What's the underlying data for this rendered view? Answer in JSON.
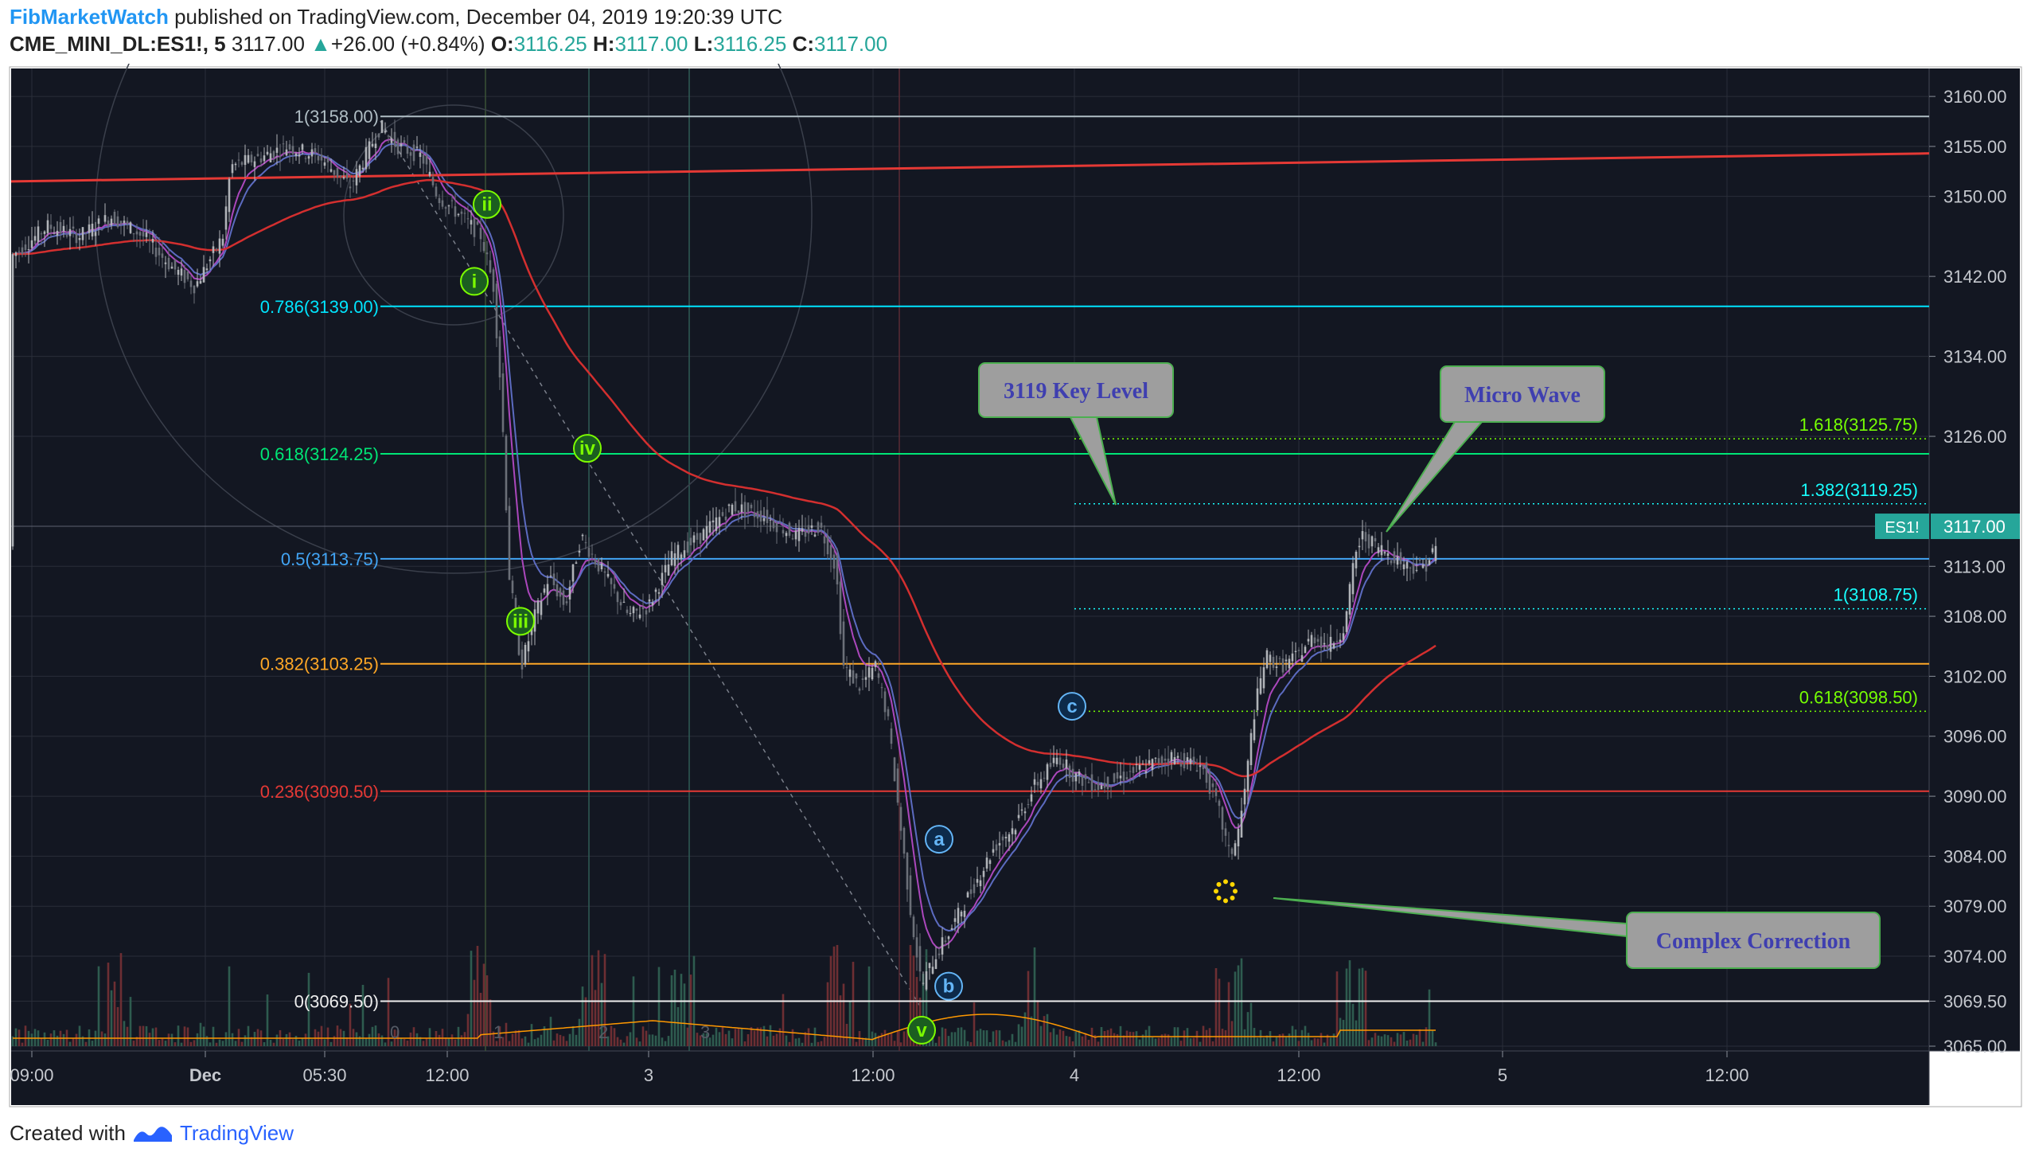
{
  "header": {
    "author": "FibMarketWatch",
    "published_text": "published on TradingView.com, December 04, 2019 19:20:39 UTC",
    "symbol": "CME_MINI_DL:ES1!, 5",
    "last": "3117.00",
    "change_arrow": "▲",
    "change": "+26.00 (+0.84%)",
    "open_label": "O:",
    "open": "3116.25",
    "high_label": "H:",
    "high": "3117.00",
    "low_label": "L:",
    "low": "3116.25",
    "close_label": "C:",
    "close": "3117.00"
  },
  "footer": {
    "created_with": "Created with",
    "brand": "TradingView"
  },
  "colors": {
    "background": "#131722",
    "grid": "#2a2e39",
    "accent_teal": "#26a69a",
    "ma_red": "#d32f2f",
    "trend_red": "#e53935",
    "ma_blue": "#5c6bc0",
    "ma_purple": "#ab47bc",
    "wave_green": "#7cfc00",
    "wave_blue": "#64b5f6",
    "callout_fill": "#9e9e9e",
    "callout_border": "#4caf50",
    "callout_text": "#3f3fb0"
  },
  "chart_data": {
    "type": "candlestick",
    "ylim": [
      3065.0,
      3162.0
    ],
    "y_ticks": [
      "3160.00",
      "3155.00",
      "3150.00",
      "3142.00",
      "3134.00",
      "3126.00",
      "3113.00",
      "3108.00",
      "3102.00",
      "3096.00",
      "3090.00",
      "3084.00",
      "3079.00",
      "3074.00",
      "3069.50",
      "3065.00"
    ],
    "x_ticks": [
      "09:00",
      "Dec",
      "05:30",
      "12:00",
      "3",
      "12:00",
      "4",
      "12:00",
      "5",
      "12:00"
    ],
    "session_numbers": [
      "0",
      "1",
      "2",
      "3"
    ],
    "price_label": {
      "symbol": "ES1!",
      "value": "3117.00",
      "price": 3117.0
    },
    "fib_retracement": [
      {
        "label": "1(3158.00)",
        "level": 3158.0,
        "color": "#b0bec5"
      },
      {
        "label": "0.786(3139.00)",
        "level": 3139.0,
        "color": "#00e5ff"
      },
      {
        "label": "0.618(3124.25)",
        "level": 3124.25,
        "color": "#00e676"
      },
      {
        "label": "0.5(3113.75)",
        "level": 3113.75,
        "color": "#42a5f5"
      },
      {
        "label": "0.382(3103.25)",
        "level": 3103.25,
        "color": "#ffa726"
      },
      {
        "label": "0.236(3090.50)",
        "level": 3090.5,
        "color": "#e53935"
      },
      {
        "label": "0(3069.50)",
        "level": 3069.5,
        "color": "#eeeeee"
      }
    ],
    "fib_extension": [
      {
        "label": "1.618(3125.75)",
        "level": 3125.75,
        "color": "#76ff03"
      },
      {
        "label": "1.382(3119.25)",
        "level": 3119.25,
        "color": "#18ffff"
      },
      {
        "label": "1(3108.75)",
        "level": 3108.75,
        "color": "#18ffff"
      },
      {
        "label": "0.618(3098.50)",
        "level": 3098.5,
        "color": "#76ff03"
      }
    ],
    "wave_labels": [
      {
        "text": "i",
        "price": 3141.5,
        "color": "green"
      },
      {
        "text": "ii",
        "price": 3149.2,
        "color": "green"
      },
      {
        "text": "iii",
        "price": 3107.5,
        "color": "green"
      },
      {
        "text": "iv",
        "price": 3124.8,
        "color": "green"
      },
      {
        "text": "v",
        "price": 3066.6,
        "color": "green"
      },
      {
        "text": "a",
        "price": 3085.7,
        "color": "blue"
      },
      {
        "text": "b",
        "price": 3071.0,
        "color": "blue"
      },
      {
        "text": "c",
        "price": 3099.0,
        "color": "blue"
      }
    ],
    "annotations": [
      {
        "text": "3119 Key Level"
      },
      {
        "text": "Micro Wave"
      },
      {
        "text": "Complex Correction"
      }
    ]
  }
}
